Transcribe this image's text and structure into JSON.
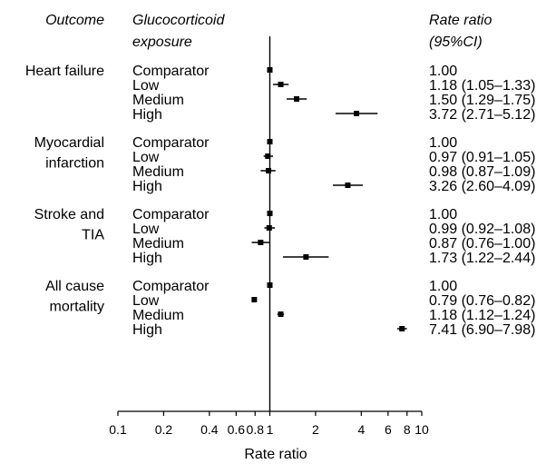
{
  "chart_data": {
    "type": "forest",
    "headers": {
      "outcome": "Outcome",
      "exposure_line1": "Glucocorticoid",
      "exposure_line2": "exposure",
      "ratio_line1": "Rate ratio",
      "ratio_line2": "(95%CI)"
    },
    "xlabel": "Rate ratio",
    "x_scale": "log",
    "xlim": [
      0.1,
      10
    ],
    "reference_line": 1,
    "x_ticks": [
      {
        "value": 0.1,
        "label": "0.1"
      },
      {
        "value": 0.2,
        "label": "0.2"
      },
      {
        "value": 0.4,
        "label": "0.4"
      },
      {
        "value": 0.6,
        "label": "0.6"
      },
      {
        "value": 0.8,
        "label": "0.8"
      },
      {
        "value": 1,
        "label": "1"
      },
      {
        "value": 2,
        "label": "2"
      },
      {
        "value": 4,
        "label": "4"
      },
      {
        "value": 6,
        "label": "6"
      },
      {
        "value": 8,
        "label": "8"
      },
      {
        "value": 10,
        "label": "10"
      }
    ],
    "groups": [
      {
        "outcome": [
          "Heart failure"
        ],
        "rows": [
          {
            "exposure": "Comparator",
            "estimate": 1.0,
            "lower": null,
            "upper": null,
            "text": "1.00"
          },
          {
            "exposure": "Low",
            "estimate": 1.18,
            "lower": 1.05,
            "upper": 1.33,
            "text": "1.18 (1.05–1.33)"
          },
          {
            "exposure": "Medium",
            "estimate": 1.5,
            "lower": 1.29,
            "upper": 1.75,
            "text": "1.50 (1.29–1.75)"
          },
          {
            "exposure": "High",
            "estimate": 3.72,
            "lower": 2.71,
            "upper": 5.12,
            "text": "3.72 (2.71–5.12)"
          }
        ]
      },
      {
        "outcome": [
          "Myocardial",
          "infarction"
        ],
        "rows": [
          {
            "exposure": "Comparator",
            "estimate": 1.0,
            "lower": null,
            "upper": null,
            "text": "1.00"
          },
          {
            "exposure": "Low",
            "estimate": 0.97,
            "lower": 0.91,
            "upper": 1.05,
            "text": "0.97 (0.91–1.05)"
          },
          {
            "exposure": "Medium",
            "estimate": 0.98,
            "lower": 0.87,
            "upper": 1.09,
            "text": "0.98 (0.87–1.09)"
          },
          {
            "exposure": "High",
            "estimate": 3.26,
            "lower": 2.6,
            "upper": 4.09,
            "text": "3.26 (2.60–4.09)"
          }
        ]
      },
      {
        "outcome": [
          "Stroke and",
          "TIA"
        ],
        "rows": [
          {
            "exposure": "Comparator",
            "estimate": 1.0,
            "lower": null,
            "upper": null,
            "text": "1.00"
          },
          {
            "exposure": "Low",
            "estimate": 0.99,
            "lower": 0.92,
            "upper": 1.08,
            "text": "0.99 (0.92–1.08)"
          },
          {
            "exposure": "Medium",
            "estimate": 0.87,
            "lower": 0.76,
            "upper": 1.0,
            "text": "0.87 (0.76–1.00)"
          },
          {
            "exposure": "High",
            "estimate": 1.73,
            "lower": 1.22,
            "upper": 2.44,
            "text": "1.73 (1.22–2.44)"
          }
        ]
      },
      {
        "outcome": [
          "All cause",
          "mortality"
        ],
        "rows": [
          {
            "exposure": "Comparator",
            "estimate": 1.0,
            "lower": null,
            "upper": null,
            "text": "1.00"
          },
          {
            "exposure": "Low",
            "estimate": 0.79,
            "lower": 0.76,
            "upper": 0.82,
            "text": "0.79 (0.76–0.82)"
          },
          {
            "exposure": "Medium",
            "estimate": 1.18,
            "lower": 1.12,
            "upper": 1.24,
            "text": "1.18 (1.12–1.24)"
          },
          {
            "exposure": "High",
            "estimate": 7.41,
            "lower": 6.9,
            "upper": 7.98,
            "text": "7.41 (6.90–7.98)"
          }
        ]
      }
    ]
  }
}
